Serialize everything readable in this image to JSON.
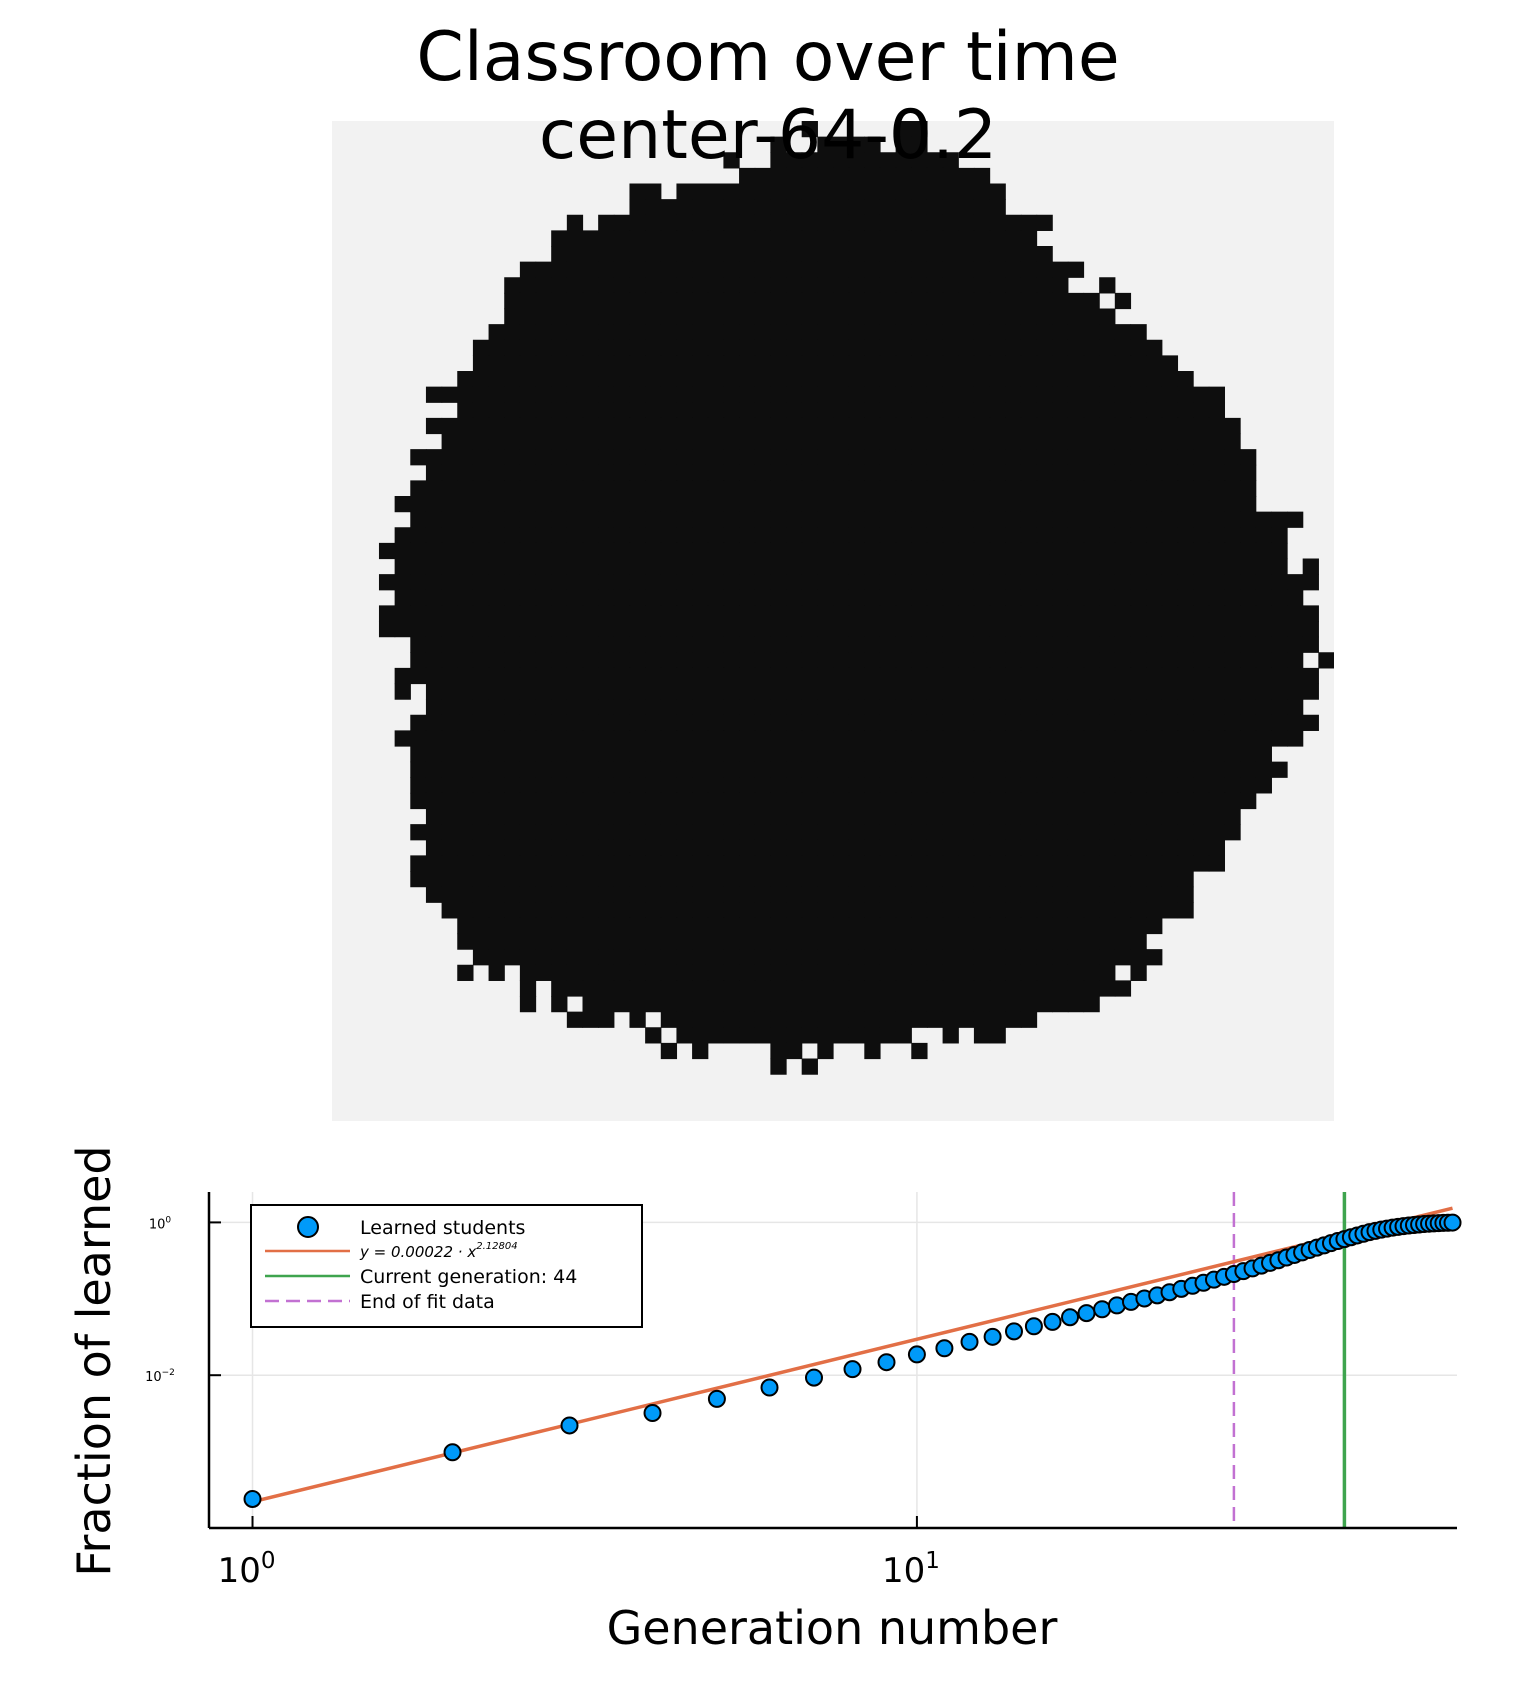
{
  "title": {
    "line1": "Classroom over time",
    "line2": "center-64-0.2"
  },
  "colors": {
    "grid_background": "#f2f2f2",
    "learned_cell": "#0e0e0e",
    "scatter": "#009af9",
    "fit": "#e26f46",
    "current_generation": "#3ea44e",
    "end_of_fit": "#c271d2"
  },
  "chart_data": [
    {
      "type": "heatmap",
      "title": "Classroom over time\ncenter-64-0.2",
      "grid_size": [
        64,
        64
      ],
      "values": "binary: learned (black) vs not learned (light gray); roughly circular blob of learned students centered in the classroom",
      "legend": "none"
    },
    {
      "type": "scatter",
      "xlabel": "Generation number",
      "ylabel": "Fraction of learned",
      "xscale": "log",
      "yscale": "log",
      "xlim": [
        0.86,
        65
      ],
      "ylim": [
        0.0001,
        2.5
      ],
      "grid": true,
      "legend_position": "top-left",
      "x_ticks": [
        {
          "value": 1,
          "base": "10",
          "exp": "0"
        },
        {
          "value": 10,
          "base": "10",
          "exp": "1"
        }
      ],
      "y_ticks": [
        {
          "value": 0.01,
          "base": "10",
          "exp": "−2"
        },
        {
          "value": 1,
          "base": "10",
          "exp": "0"
        }
      ],
      "series": [
        {
          "name": "Learned students",
          "kind": "scatter",
          "x": [
            1,
            2,
            3,
            4,
            5,
            6,
            7,
            8,
            9,
            10,
            11,
            12,
            13,
            14,
            15,
            16,
            17,
            18,
            19,
            20,
            21,
            22,
            23,
            24,
            25,
            26,
            27,
            28,
            29,
            30,
            31,
            32,
            33,
            34,
            35,
            36,
            37,
            38,
            39,
            40,
            41,
            42,
            43,
            44,
            45,
            46,
            47,
            48,
            49,
            50,
            51,
            52,
            53,
            54,
            55,
            56,
            57,
            58,
            59,
            60,
            61,
            62,
            63,
            64
          ],
          "y": [
            0.00024,
            0.00098,
            0.0022,
            0.0032,
            0.0049,
            0.0069,
            0.0093,
            0.012,
            0.0148,
            0.0187,
            0.0225,
            0.0273,
            0.0318,
            0.0375,
            0.0437,
            0.0499,
            0.0574,
            0.065,
            0.073,
            0.082,
            0.091,
            0.101,
            0.111,
            0.122,
            0.135,
            0.148,
            0.162,
            0.178,
            0.194,
            0.211,
            0.23,
            0.25,
            0.272,
            0.295,
            0.32,
            0.347,
            0.375,
            0.405,
            0.436,
            0.468,
            0.5,
            0.535,
            0.57,
            0.605,
            0.64,
            0.675,
            0.71,
            0.745,
            0.775,
            0.805,
            0.83,
            0.855,
            0.875,
            0.895,
            0.91,
            0.925,
            0.94,
            0.952,
            0.962,
            0.97,
            0.978,
            0.985,
            0.99,
            0.995
          ]
        },
        {
          "name": "y = 0.00022 · x",
          "name_exponent": "2.12804",
          "kind": "line",
          "formula": {
            "a": 0.00022,
            "b": 2.12804
          },
          "x_range": [
            1,
            64
          ]
        },
        {
          "name": "Current generation: 44",
          "kind": "vline",
          "x": 44
        },
        {
          "name": "End of fit data",
          "kind": "vline_dashed",
          "x": 30
        }
      ]
    }
  ]
}
